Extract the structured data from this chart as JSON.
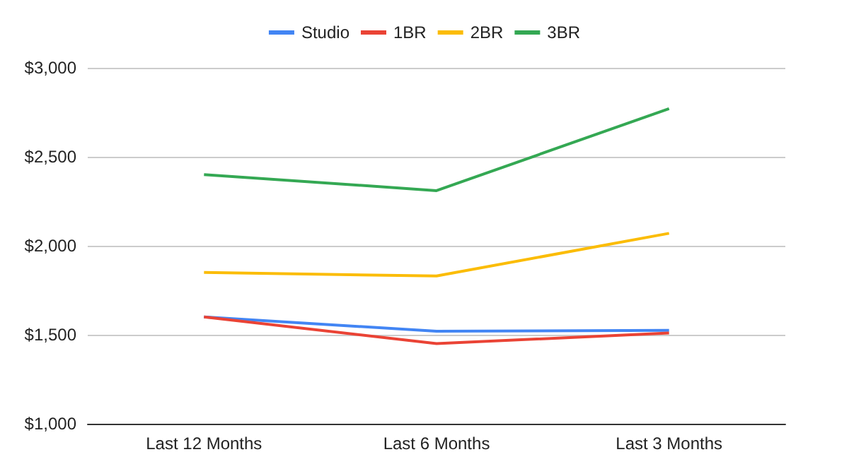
{
  "chart_data": {
    "type": "line",
    "categories": [
      "Last 12 Months",
      "Last 6 Months",
      "Last 3 Months"
    ],
    "series": [
      {
        "name": "Studio",
        "color": "#4285f4",
        "values": [
          1600,
          1520,
          1525
        ]
      },
      {
        "name": "1BR",
        "color": "#ea4335",
        "values": [
          1600,
          1450,
          1510
        ]
      },
      {
        "name": "2BR",
        "color": "#fbbc04",
        "values": [
          1850,
          1830,
          2070
        ]
      },
      {
        "name": "3BR",
        "color": "#34a853",
        "values": [
          2400,
          2310,
          2770
        ]
      }
    ],
    "ylim": [
      1000,
      3000
    ],
    "yticks": [
      {
        "value": 1000,
        "label": "$1,000"
      },
      {
        "value": 1500,
        "label": "$1,500"
      },
      {
        "value": 2000,
        "label": "$2,000"
      },
      {
        "value": 2500,
        "label": "$2,500"
      },
      {
        "value": 3000,
        "label": "$3,000"
      }
    ],
    "grid": "y",
    "legend": "top",
    "marker": "none",
    "line_style": "solid"
  }
}
